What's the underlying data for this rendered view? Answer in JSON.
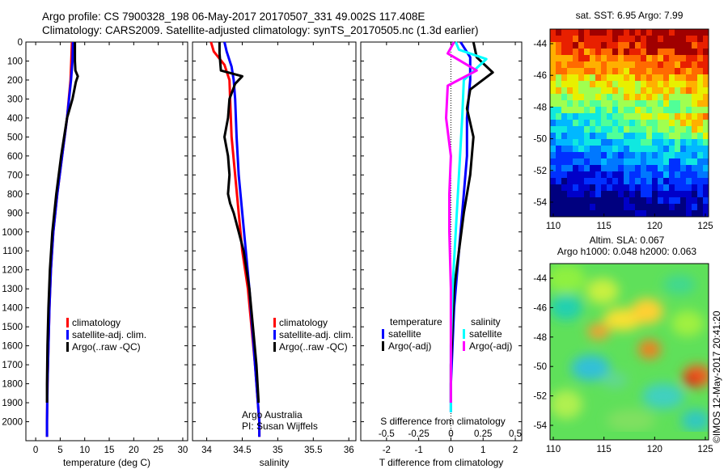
{
  "header": {
    "line1": "Argo profile: CS 7900328_198 06-May-2017 20170507_331 49.002S 117.408E",
    "line2": "Climatology: CARS2009. Satellite-adjusted climatology: synTS_20170505.nc (1.3d earlier)"
  },
  "colors": {
    "climatology": "#ff0000",
    "satellite": "#0000ff",
    "argo": "#000000",
    "sal_satellite": "#00ffff",
    "sal_argo": "#ff00ff"
  },
  "chart_data": [
    {
      "type": "line",
      "xlabel": "temperature (deg C)",
      "xlim": [
        -2,
        31
      ],
      "xticks": [
        "0",
        "5",
        "10",
        "15",
        "20",
        "25",
        "30"
      ],
      "ylim": [
        2100,
        0
      ],
      "yticks": [
        "0",
        "100",
        "200",
        "300",
        "400",
        "500",
        "600",
        "700",
        "800",
        "900",
        "1000",
        "1100",
        "1200",
        "1300",
        "1400",
        "1500",
        "1600",
        "1700",
        "1800",
        "1900",
        "2000"
      ],
      "legend": [
        "climatology",
        "satellite-adj. clim.",
        "Argo(..raw -QC)"
      ],
      "series": [
        {
          "name": "climatology",
          "x": [
            7.4,
            7.1,
            6.4,
            5.4,
            4.4,
            3.6,
            3.1,
            2.8,
            2.6,
            2.4,
            2.3,
            2.3
          ],
          "y": [
            0,
            200,
            400,
            600,
            800,
            1000,
            1200,
            1400,
            1600,
            1800,
            2000,
            2080
          ]
        },
        {
          "name": "satellite-adj. clim.",
          "x": [
            7.6,
            7.5,
            7.2,
            6.4,
            5.4,
            4.4,
            3.6,
            3.1,
            2.8,
            2.6,
            2.4,
            2.3,
            2.3
          ],
          "y": [
            0,
            100,
            200,
            400,
            600,
            800,
            1000,
            1200,
            1400,
            1600,
            1800,
            2000,
            2080
          ]
        },
        {
          "name": "Argo(..raw -QC)",
          "x": [
            8.0,
            8.0,
            8.1,
            8.6,
            8.2,
            7.5,
            6.4,
            5.2,
            4.2,
            3.4,
            2.9,
            2.6,
            2.4,
            2.3,
            2.3
          ],
          "y": [
            0,
            100,
            150,
            180,
            210,
            300,
            400,
            600,
            800,
            1000,
            1200,
            1400,
            1600,
            1800,
            1900
          ]
        }
      ]
    },
    {
      "type": "line",
      "xlabel": "salinity",
      "xlim": [
        33.8,
        36.1
      ],
      "xticks": [
        "34",
        "34.5",
        "35",
        "35.5",
        "36"
      ],
      "ylim": [
        2100,
        0
      ],
      "legend": [
        "climatology",
        "satellite-adj. clim.",
        "Argo(..raw -QC)"
      ],
      "annotation": [
        "Argo Australia",
        "PI: Susan Wijffels"
      ],
      "series": [
        {
          "name": "climatology",
          "x": [
            34.06,
            34.1,
            34.25,
            34.32,
            34.33,
            34.35,
            34.4,
            34.45,
            34.5,
            34.58,
            34.63,
            34.68,
            34.72,
            34.74,
            34.74
          ],
          "y": [
            0,
            50,
            120,
            200,
            300,
            500,
            700,
            900,
            1100,
            1300,
            1500,
            1700,
            1900,
            2000,
            2080
          ]
        },
        {
          "name": "satellite-adj. clim.",
          "x": [
            34.25,
            34.28,
            34.35,
            34.38,
            34.4,
            34.42,
            34.45,
            34.5,
            34.55,
            34.6,
            34.64,
            34.68,
            34.72,
            34.74,
            34.74
          ],
          "y": [
            0,
            50,
            130,
            200,
            300,
            500,
            700,
            900,
            1100,
            1300,
            1500,
            1700,
            1900,
            2000,
            2080
          ]
        },
        {
          "name": "Argo(..raw -QC)",
          "x": [
            34.18,
            34.18,
            34.2,
            34.5,
            34.4,
            34.32,
            34.3,
            34.25,
            34.3,
            34.32,
            34.3,
            34.33,
            34.38,
            34.45,
            34.52,
            34.6,
            34.65,
            34.7,
            34.73
          ],
          "y": [
            0,
            60,
            150,
            180,
            220,
            300,
            400,
            500,
            600,
            700,
            800,
            850,
            900,
            1000,
            1100,
            1300,
            1500,
            1700,
            1900
          ]
        }
      ]
    },
    {
      "type": "line",
      "xlabel": "T difference from climatology",
      "xlabel_top": "S difference from climatology",
      "xlim": [
        -2.8,
        2.2
      ],
      "xticks": [
        "-2",
        "-1",
        "0",
        "1",
        "2"
      ],
      "xticks_top": [
        "-0.5",
        "-0.25",
        "0",
        "0.25",
        "0.5"
      ],
      "ylim": [
        2100,
        0
      ],
      "legend_temperature": {
        "title": "temperature",
        "items": [
          "satellite",
          "Argo(-adj)"
        ]
      },
      "legend_salinity": {
        "title": "salinity",
        "items": [
          "satellite",
          "Argo(-adj)"
        ]
      },
      "series": [
        {
          "name": "temperature satellite",
          "x": [
            0.3,
            0.6,
            0.6,
            0.5,
            0.5,
            0.4,
            0.3,
            0.2,
            0.1,
            0.05,
            0.0,
            0.0
          ],
          "y": [
            0,
            80,
            200,
            400,
            600,
            800,
            1000,
            1200,
            1400,
            1600,
            1800,
            1950
          ]
        },
        {
          "name": "temperature Argo(-adj)",
          "x": [
            0.7,
            0.8,
            1.3,
            0.6,
            0.5,
            0.7,
            0.6,
            0.4,
            0.25,
            0.1,
            0.05,
            0.0,
            0.0
          ],
          "y": [
            0,
            80,
            160,
            250,
            350,
            500,
            700,
            900,
            1100,
            1300,
            1500,
            1700,
            1900
          ]
        },
        {
          "name": "salinity satellite",
          "x": [
            0.15,
            0.25,
            1.1,
            0.4,
            0.35,
            0.25,
            0.15,
            0.05,
            0.0,
            0.0,
            0.0
          ],
          "y": [
            0,
            40,
            90,
            200,
            400,
            700,
            1000,
            1300,
            1600,
            1900,
            1950
          ]
        },
        {
          "name": "salinity Argo(-adj)",
          "x": [
            0.1,
            -0.1,
            0.8,
            -0.1,
            -0.15,
            0.0,
            -0.05,
            -0.05,
            0.0,
            0.0,
            0.0
          ],
          "y": [
            0,
            60,
            150,
            230,
            400,
            600,
            800,
            1000,
            1300,
            1600,
            1900
          ]
        }
      ]
    }
  ],
  "maps": {
    "sst": {
      "title": "sat. SST: 6.95 Argo: 7.99",
      "xticks": [
        "110",
        "115",
        "120",
        "125"
      ],
      "yticks": [
        "-44",
        "-46",
        "-48",
        "-50",
        "-52",
        "-54"
      ]
    },
    "sla": {
      "title_line1": "Altim. SLA: 0.067",
      "title_line2": "Argo h1000: 0.048 h2000: 0.063",
      "xticks": [
        "110",
        "115",
        "120",
        "125"
      ],
      "yticks": [
        "-44",
        "-46",
        "-48",
        "-50",
        "-52",
        "-54"
      ]
    }
  },
  "footer": {
    "stamp": "©IMOS 12-May-2017 20:41:20"
  }
}
